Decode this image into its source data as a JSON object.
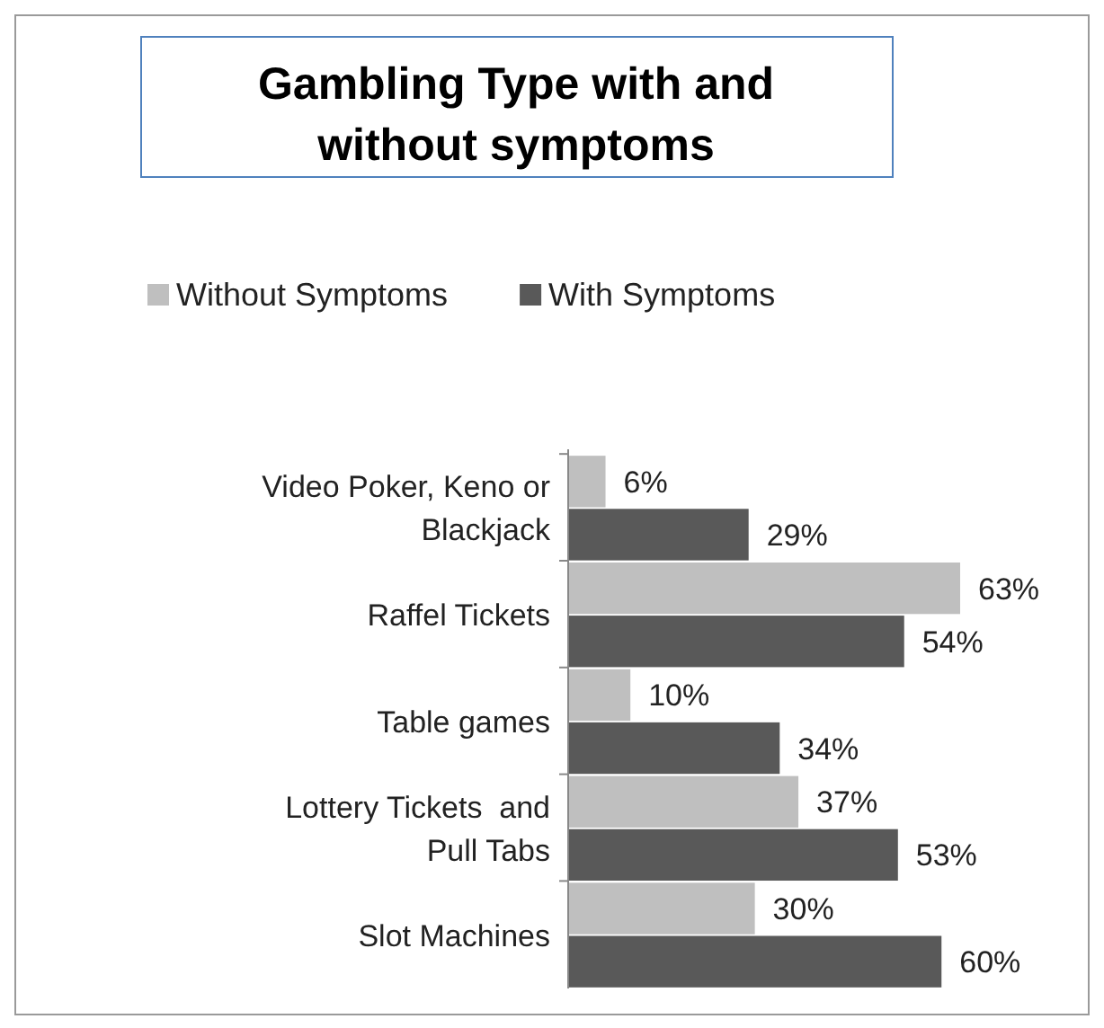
{
  "chart_data": {
    "type": "bar",
    "orientation": "horizontal",
    "title": "Gambling Type with and without symptoms",
    "categories": [
      "Video Poker, Keno or Blackjack",
      "Raffel Tickets",
      "Table games",
      "Lottery Tickets  and Pull Tabs",
      "Slot Machines"
    ],
    "series": [
      {
        "name": "Without Symptoms",
        "color": "#bfbfbf",
        "values": [
          6,
          63,
          10,
          37,
          30
        ],
        "value_labels": [
          "6%",
          "63%",
          "10%",
          "37%",
          "30%"
        ]
      },
      {
        "name": "With Symptoms",
        "color": "#595959",
        "values": [
          29,
          54,
          34,
          53,
          60
        ],
        "value_labels": [
          "29%",
          "54%",
          "34%",
          "53%",
          "60%"
        ]
      }
    ],
    "legend": "top"
  }
}
